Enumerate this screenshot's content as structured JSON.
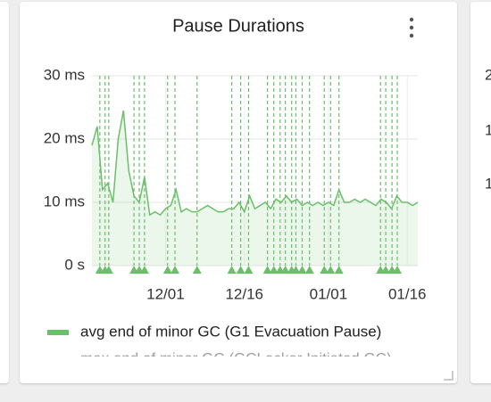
{
  "chart_data": {
    "type": "line",
    "title": "Pause Durations",
    "x": [
      0,
      1,
      2,
      3,
      4,
      5,
      6,
      7,
      8,
      9,
      10,
      11,
      12,
      13,
      14,
      15,
      16,
      17,
      18,
      19,
      20,
      21,
      22,
      23,
      24,
      25,
      26,
      27,
      28,
      29,
      30,
      31,
      32,
      33,
      34,
      35,
      36,
      37,
      38,
      39,
      40,
      41,
      42,
      43,
      44,
      45,
      46,
      47,
      48,
      49,
      50,
      51,
      52,
      53,
      54,
      55,
      56,
      57,
      58,
      59,
      60,
      61,
      62
    ],
    "series": [
      {
        "name": "avg end of minor GC (G1 Evacuation Pause)",
        "color": "#6abf69",
        "values": [
          19,
          22,
          12,
          13,
          10,
          20,
          24.5,
          15,
          11,
          10,
          14,
          8,
          8.5,
          8,
          9,
          9.5,
          12,
          8.5,
          9,
          8.5,
          8.5,
          9,
          9.5,
          9,
          8.5,
          8.5,
          9,
          9,
          10,
          8.5,
          11,
          9,
          9.5,
          10,
          9,
          10.5,
          10,
          11,
          10,
          10.5,
          9.5,
          10,
          9.5,
          10,
          9.5,
          10,
          9.5,
          12,
          10,
          10,
          10.5,
          10,
          10.5,
          10,
          9.5,
          10.5,
          10,
          9,
          11,
          10,
          10,
          9.5,
          10
        ]
      },
      {
        "name": "max end of minor GC (GCLocker Initiated GC)",
        "color": "#f4b400",
        "hidden": true
      }
    ],
    "events": [
      1.5,
      2.5,
      3.2,
      8,
      9,
      10,
      14.4,
      15.8,
      20,
      26.6,
      28.3,
      29.8,
      33.4,
      34.6,
      35.8,
      36.8,
      38,
      38.8,
      40,
      41.4,
      44.2,
      45.4,
      47,
      54.9,
      55.9,
      57.1,
      58.1
    ],
    "xlim": [
      0,
      62
    ],
    "xticks": [
      {
        "value": 14,
        "label": "12/01"
      },
      {
        "value": 29,
        "label": "12/16"
      },
      {
        "value": 45,
        "label": "01/01"
      },
      {
        "value": 60,
        "label": "01/16"
      }
    ],
    "ylim": [
      0,
      30
    ],
    "yticks": [
      {
        "value": 0,
        "label": "0 s"
      },
      {
        "value": 10,
        "label": "10 ms"
      },
      {
        "value": 20,
        "label": "20 ms"
      },
      {
        "value": 30,
        "label": "30 ms"
      }
    ],
    "grid": true,
    "legend": "bottom"
  },
  "adjacent_card": {
    "labels": [
      "2",
      "1",
      "1"
    ]
  }
}
